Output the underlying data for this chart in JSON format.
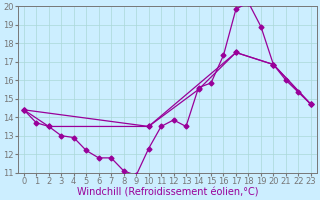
{
  "bg_color": "#cceeff",
  "line_color": "#990099",
  "marker": "D",
  "markersize": 2.5,
  "linewidth": 0.9,
  "xlabel": "Windchill (Refroidissement éolien,°C)",
  "xlabel_fontsize": 7,
  "xlim": [
    -0.5,
    23.5
  ],
  "ylim": [
    11,
    20
  ],
  "yticks": [
    11,
    12,
    13,
    14,
    15,
    16,
    17,
    18,
    19,
    20
  ],
  "xticks": [
    0,
    1,
    2,
    3,
    4,
    5,
    6,
    7,
    8,
    9,
    10,
    11,
    12,
    13,
    14,
    15,
    16,
    17,
    18,
    19,
    20,
    21,
    22,
    23
  ],
  "tick_fontsize": 6,
  "grid_color": "#aad8d8",
  "line1_x": [
    0,
    1,
    2,
    3,
    4,
    5,
    6,
    7,
    8,
    9,
    10,
    11,
    12,
    13,
    14,
    15,
    16,
    17,
    18,
    19,
    20,
    21,
    22,
    23
  ],
  "line1_y": [
    14.4,
    13.7,
    13.5,
    13.0,
    12.9,
    12.2,
    11.8,
    11.8,
    11.1,
    10.85,
    12.3,
    13.5,
    13.85,
    13.5,
    15.6,
    15.85,
    17.35,
    19.85,
    20.2,
    18.9,
    16.85,
    16.0,
    15.35,
    14.7
  ],
  "line2_x": [
    0,
    2,
    10,
    14,
    17,
    20,
    23
  ],
  "line2_y": [
    14.4,
    13.5,
    13.5,
    15.5,
    17.5,
    16.85,
    14.7
  ],
  "line3_x": [
    0,
    10,
    17,
    20,
    23
  ],
  "line3_y": [
    14.4,
    13.5,
    17.5,
    16.85,
    14.7
  ]
}
